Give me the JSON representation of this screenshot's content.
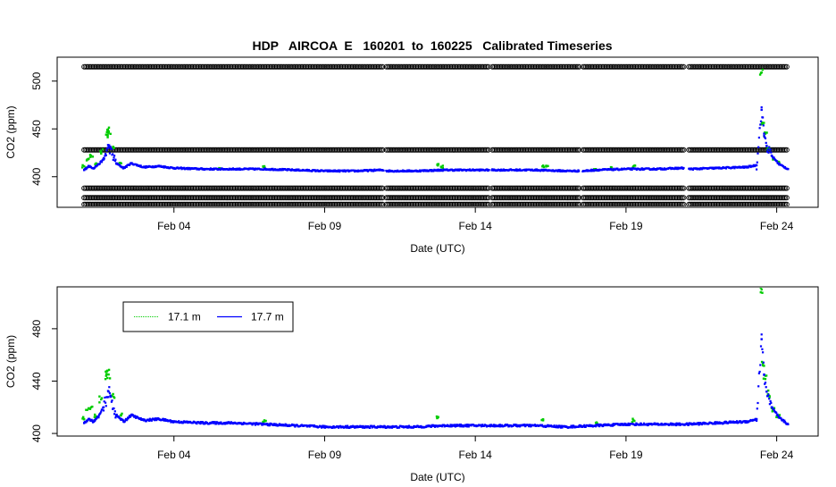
{
  "figure": {
    "title": "HDP   AIRCOA  E   160201  to  160225   Calibrated Timeseries"
  },
  "colors": {
    "green": "#00cc00",
    "blue": "#0000ff",
    "black": "#000000"
  },
  "chart_data": [
    {
      "type": "scatter",
      "title": "HDP   AIRCOA  E   160201  to  160225   Calibrated Timeseries",
      "xlabel": "Date (UTC)",
      "ylabel": "CO2 (ppm)",
      "x_ticks": [
        {
          "date": "2016-02-04",
          "label": "Feb 04"
        },
        {
          "date": "2016-02-09",
          "label": "Feb 09"
        },
        {
          "date": "2016-02-14",
          "label": "Feb 14"
        },
        {
          "date": "2016-02-19",
          "label": "Feb 19"
        },
        {
          "date": "2016-02-24",
          "label": "Feb 24"
        }
      ],
      "y_ticks": [
        400,
        450,
        500
      ],
      "xlim": [
        "2016-02-00T03:00",
        "2016-02-25T09:00"
      ],
      "ylim": [
        368,
        525
      ],
      "grid": false,
      "legend": "none",
      "calibration_levels": [
        515,
        428,
        388,
        378,
        371
      ],
      "calibration_color": "#000000",
      "data_gaps": [
        [
          "2016-02-10T23:00",
          "2016-02-11T01:00"
        ],
        [
          "2016-02-14T11:00",
          "2016-02-14T13:00"
        ],
        [
          "2016-02-17T11:00",
          "2016-02-17T13:00"
        ],
        [
          "2016-02-20T22:00",
          "2016-02-21T02:00"
        ]
      ],
      "series": [
        {
          "label": "17.1 m",
          "color": "#00cc00",
          "points": [
            [
              "2016-02-01T00:30",
              411
            ],
            [
              "2016-02-01T03:00",
              418
            ],
            [
              "2016-02-01T06:00",
              422
            ],
            [
              "2016-02-01T10:00",
              414
            ],
            [
              "2016-02-01T14:00",
              426
            ],
            [
              "2016-02-01T18:00",
              444
            ],
            [
              "2016-02-01T19:00",
              449
            ],
            [
              "2016-02-01T20:00",
              446
            ],
            [
              "2016-02-02T00:00",
              430
            ],
            [
              "2016-02-02T06:00",
              414
            ],
            [
              "2016-02-05T12:00",
              409
            ],
            [
              "2016-02-07T00:00",
              411
            ],
            [
              "2016-02-12T18:00",
              413
            ],
            [
              "2016-02-12T21:00",
              410
            ],
            [
              "2016-02-16T06:00",
              411
            ],
            [
              "2016-02-16T09:00",
              411
            ],
            [
              "2016-02-18T00:00",
              408
            ],
            [
              "2016-02-18T12:00",
              410
            ],
            [
              "2016-02-19T06:00",
              411
            ],
            [
              "2016-02-23T12:00",
              509
            ],
            [
              "2016-02-23T13:00",
              455
            ],
            [
              "2016-02-23T15:00",
              445
            ],
            [
              "2016-02-23T17:00",
              430
            ],
            [
              "2016-02-23T21:00",
              418
            ],
            [
              "2016-02-24T01:00",
              415
            ]
          ]
        },
        {
          "label": "17.7 m",
          "color": "#0000ff",
          "points": [
            [
              "2016-02-01T00:30",
              407
            ],
            [
              "2016-02-01T04:00",
              411
            ],
            [
              "2016-02-01T08:00",
              409
            ],
            [
              "2016-02-01T12:00",
              413
            ],
            [
              "2016-02-01T16:00",
              418
            ],
            [
              "2016-02-01T20:00",
              432
            ],
            [
              "2016-02-02T02:00",
              414
            ],
            [
              "2016-02-02T08:00",
              409
            ],
            [
              "2016-02-02T14:00",
              414
            ],
            [
              "2016-02-03T00:00",
              410
            ],
            [
              "2016-02-03T12:00",
              411
            ],
            [
              "2016-02-04T00:00",
              409
            ],
            [
              "2016-02-05T00:00",
              408
            ],
            [
              "2016-02-06T00:00",
              408
            ],
            [
              "2016-02-07T00:00",
              408
            ],
            [
              "2016-02-08T00:00",
              407
            ],
            [
              "2016-02-09T00:00",
              406
            ],
            [
              "2016-02-10T00:00",
              406
            ],
            [
              "2016-02-10T22:00",
              407
            ],
            [
              "2016-02-11T02:00",
              406
            ],
            [
              "2016-02-12T00:00",
              406
            ],
            [
              "2016-02-13T00:00",
              407
            ],
            [
              "2016-02-14T00:00",
              407
            ],
            [
              "2016-02-14T10:00",
              407
            ],
            [
              "2016-02-14T14:00",
              407
            ],
            [
              "2016-02-15T00:00",
              407
            ],
            [
              "2016-02-16T00:00",
              407
            ],
            [
              "2016-02-17T00:00",
              406
            ],
            [
              "2016-02-17T10:00",
              406
            ],
            [
              "2016-02-17T14:00",
              406
            ],
            [
              "2016-02-18T00:00",
              407
            ],
            [
              "2016-02-19T00:00",
              408
            ],
            [
              "2016-02-20T00:00",
              408
            ],
            [
              "2016-02-20T21:00",
              409
            ],
            [
              "2016-02-21T03:00",
              408
            ],
            [
              "2016-02-22T00:00",
              409
            ],
            [
              "2016-02-23T00:00",
              410
            ],
            [
              "2016-02-23T08:00",
              412
            ],
            [
              "2016-02-23T12:00",
              470
            ],
            [
              "2016-02-23T14:00",
              445
            ],
            [
              "2016-02-23T16:00",
              432
            ],
            [
              "2016-02-23T20:00",
              422
            ],
            [
              "2016-02-24T02:00",
              413
            ],
            [
              "2016-02-24T09:00",
              408
            ]
          ]
        }
      ]
    },
    {
      "type": "scatter",
      "title": "",
      "xlabel": "Date (UTC)",
      "ylabel": "CO2 (ppm)",
      "x_ticks": [
        {
          "date": "2016-02-04",
          "label": "Feb 04"
        },
        {
          "date": "2016-02-09",
          "label": "Feb 09"
        },
        {
          "date": "2016-02-14",
          "label": "Feb 14"
        },
        {
          "date": "2016-02-19",
          "label": "Feb 19"
        },
        {
          "date": "2016-02-24",
          "label": "Feb 24"
        }
      ],
      "y_ticks": [
        400,
        440,
        480
      ],
      "xlim": [
        "2016-02-00T03:00",
        "2016-02-25T09:00"
      ],
      "ylim": [
        398,
        512
      ],
      "grid": false,
      "legend": "top-left",
      "series": [
        {
          "name": "17.1 m",
          "color": "#00cc00",
          "points": [
            [
              "2016-02-01T00:30",
              411
            ],
            [
              "2016-02-01T03:00",
              418
            ],
            [
              "2016-02-01T06:00",
              420
            ],
            [
              "2016-02-01T10:00",
              413
            ],
            [
              "2016-02-01T14:00",
              426
            ],
            [
              "2016-02-01T18:00",
              444
            ],
            [
              "2016-02-01T19:00",
              448
            ],
            [
              "2016-02-01T20:00",
              445
            ],
            [
              "2016-02-02T00:00",
              428
            ],
            [
              "2016-02-02T06:00",
              414
            ],
            [
              "2016-02-07T00:00",
              410
            ],
            [
              "2016-02-12T18:00",
              412
            ],
            [
              "2016-02-16T06:00",
              410
            ],
            [
              "2016-02-18T00:00",
              408
            ],
            [
              "2016-02-19T06:00",
              410
            ],
            [
              "2016-02-23T12:00",
              510
            ],
            [
              "2016-02-23T13:00",
              453
            ],
            [
              "2016-02-23T15:00",
              444
            ],
            [
              "2016-02-23T17:00",
              430
            ],
            [
              "2016-02-23T21:00",
              418
            ],
            [
              "2016-02-24T01:00",
              413
            ]
          ]
        },
        {
          "name": "17.7 m",
          "color": "#0000ff",
          "points": [
            [
              "2016-02-01T00:30",
              408
            ],
            [
              "2016-02-01T04:00",
              411
            ],
            [
              "2016-02-01T08:00",
              409
            ],
            [
              "2016-02-01T12:00",
              413
            ],
            [
              "2016-02-01T16:00",
              420
            ],
            [
              "2016-02-01T20:00",
              432
            ],
            [
              "2016-02-02T02:00",
              414
            ],
            [
              "2016-02-02T08:00",
              409
            ],
            [
              "2016-02-02T14:00",
              414
            ],
            [
              "2016-02-03T00:00",
              410
            ],
            [
              "2016-02-03T12:00",
              411
            ],
            [
              "2016-02-04T00:00",
              409
            ],
            [
              "2016-02-05T00:00",
              408
            ],
            [
              "2016-02-06T00:00",
              408
            ],
            [
              "2016-02-07T00:00",
              407
            ],
            [
              "2016-02-08T00:00",
              406
            ],
            [
              "2016-02-09T00:00",
              405
            ],
            [
              "2016-02-10T00:00",
              405
            ],
            [
              "2016-02-11T00:00",
              405
            ],
            [
              "2016-02-12T00:00",
              405
            ],
            [
              "2016-02-13T00:00",
              406
            ],
            [
              "2016-02-14T00:00",
              406
            ],
            [
              "2016-02-15T00:00",
              406
            ],
            [
              "2016-02-16T00:00",
              406
            ],
            [
              "2016-02-17T00:00",
              405
            ],
            [
              "2016-02-18T00:00",
              406
            ],
            [
              "2016-02-19T00:00",
              407
            ],
            [
              "2016-02-20T00:00",
              407
            ],
            [
              "2016-02-21T00:00",
              407
            ],
            [
              "2016-02-22T00:00",
              408
            ],
            [
              "2016-02-23T00:00",
              409
            ],
            [
              "2016-02-23T08:00",
              411
            ],
            [
              "2016-02-23T12:00",
              472
            ],
            [
              "2016-02-23T14:00",
              445
            ],
            [
              "2016-02-23T16:00",
              432
            ],
            [
              "2016-02-23T20:00",
              420
            ],
            [
              "2016-02-24T02:00",
              412
            ],
            [
              "2016-02-24T09:00",
              407
            ]
          ]
        }
      ]
    }
  ]
}
